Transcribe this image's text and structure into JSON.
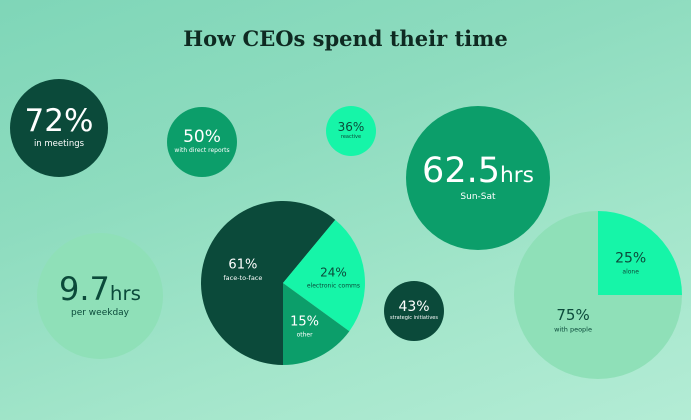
{
  "title": "How CEOs spend their time",
  "colors": {
    "dark": "#0b4a3a",
    "medium": "#0c9e6a",
    "bright": "#16f5a8",
    "pale": "#8fe0b8"
  },
  "stats": {
    "meetings": {
      "value": "72%",
      "label": "in meetings"
    },
    "direct_reports": {
      "value": "50%",
      "label": "with direct reports"
    },
    "reactive": {
      "value": "36%",
      "label": "reactive"
    },
    "weekly": {
      "value": "62.5",
      "unit": "hrs",
      "label": "Sun-Sat"
    },
    "weekday": {
      "value": "9.7",
      "unit": "hrs",
      "label": "per weekday"
    },
    "strategic": {
      "value": "43%",
      "label": "strategic initiatives"
    }
  },
  "chart_data": [
    {
      "type": "pie",
      "title": "",
      "slices": [
        {
          "label": "face-to-face",
          "value": 61,
          "display": "61%"
        },
        {
          "label": "electronic comms",
          "value": 24,
          "display": "24%"
        },
        {
          "label": "other",
          "value": 15,
          "display": "15%"
        }
      ]
    },
    {
      "type": "pie",
      "title": "",
      "slices": [
        {
          "label": "alone",
          "value": 25,
          "display": "25%"
        },
        {
          "label": "with people",
          "value": 75,
          "display": "75%"
        }
      ]
    }
  ]
}
